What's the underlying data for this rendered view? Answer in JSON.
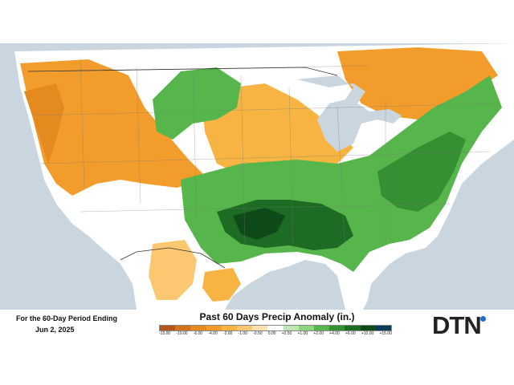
{
  "period": {
    "line1": "For the 60-Day Period Ending",
    "line2": "Jun 2, 2025"
  },
  "legend": {
    "title": "Past 60 Days Precip Anomaly (in.)",
    "ticks": [
      "-15.00",
      "-10.00",
      "-6.00",
      "-4.00",
      "-2.00",
      "-1.00",
      "-0.50",
      "0.00",
      "+0.50",
      "+1.00",
      "+2.00",
      "+4.00",
      "+6.00",
      "+10.00",
      "+15.00"
    ],
    "colors": [
      "#b5561a",
      "#d2731c",
      "#e58a1f",
      "#f29c2b",
      "#f7b443",
      "#fbc871",
      "#fde0b0",
      "#ffffff",
      "#bfe6b1",
      "#8fd480",
      "#56b64b",
      "#359033",
      "#1e6b24",
      "#0f4a1a",
      "#0b3a5a"
    ]
  },
  "logo": {
    "text": "DTN"
  },
  "map_colors": {
    "ocean": "#c9d5df",
    "land_neutral": "#ffffff",
    "dry_light": "#fbc871",
    "dry_mid": "#f29c2b",
    "dry_dark": "#e58a1f",
    "wet_light": "#8fd480",
    "wet_mid": "#3f9c3b",
    "wet_dark": "#1e6b24",
    "wet_darkest": "#0f4a1a",
    "lakes": "#c9d5df"
  }
}
